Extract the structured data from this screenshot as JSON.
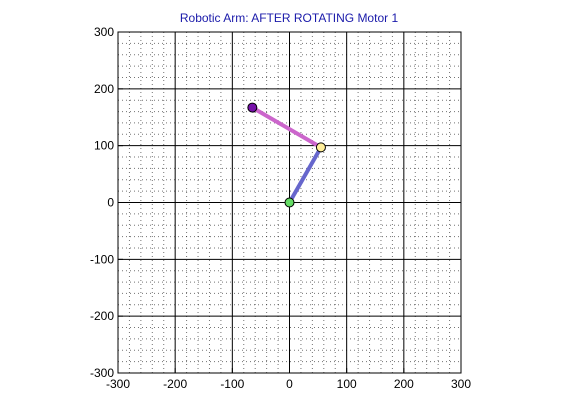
{
  "chart_data": {
    "type": "line",
    "title": "Robotic Arm: AFTER ROTATING Motor 1",
    "title_color": "#1a1aaa",
    "xlabel": "",
    "ylabel": "",
    "xlim": [
      -300,
      300
    ],
    "ylim": [
      -300,
      300
    ],
    "xticks": [
      -300,
      -200,
      -100,
      0,
      100,
      200,
      300
    ],
    "yticks": [
      -300,
      -200,
      -100,
      0,
      100,
      200,
      300
    ],
    "xtick_labels": [
      "-300",
      "-200",
      "-100",
      "0",
      "100",
      "200",
      "300"
    ],
    "ytick_labels": [
      "-300",
      "-200",
      "-100",
      "0",
      "100",
      "200",
      "300"
    ],
    "major_grid": true,
    "minor_grid": "dotted",
    "minor_step": 20,
    "series": [
      {
        "x": [
          0,
          55
        ],
        "y": [
          0,
          97
        ],
        "color": "#6666cc",
        "line_width": "thick"
      },
      {
        "x": [
          55,
          -65
        ],
        "y": [
          97,
          167
        ],
        "color": "#cc66cc",
        "line_width": "thick"
      }
    ],
    "joints": [
      {
        "x": 0,
        "y": 0,
        "fill": "#66dd66"
      },
      {
        "x": 55,
        "y": 97,
        "fill": "#ffee99"
      },
      {
        "x": -65,
        "y": 167,
        "fill": "#7711aa"
      }
    ]
  }
}
